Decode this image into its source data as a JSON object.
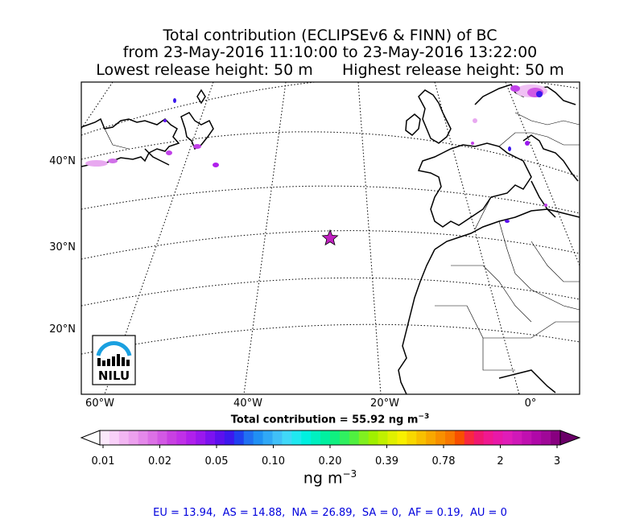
{
  "title": {
    "line1": "Total contribution (ECLIPSEv6 & FINN) of BC",
    "line2": "from 23-May-2016 11:10:00 to 23-May-2016 13:22:00",
    "line3_left": "Lowest release height: 50 m",
    "line3_right": "Highest release height: 50 m"
  },
  "map": {
    "lat_labels": [
      "40°N",
      "30°N",
      "20°N"
    ],
    "lon_labels": [
      "60°W",
      "40°W",
      "20°W",
      "0°"
    ],
    "release_marker": {
      "symbol": "star",
      "color": "#c020c0"
    },
    "logo_text": "NILU"
  },
  "total_label": "Total contribution = 55.92 ng m",
  "total_exp": "−3",
  "colorbar": {
    "ticks": [
      "0.01",
      "0.02",
      "0.05",
      "0.10",
      "0.20",
      "0.39",
      "0.78",
      "2",
      "3"
    ],
    "unit": "ng m",
    "unit_exp": "−3",
    "colors": [
      "#fbe8fb",
      "#f8d0f8",
      "#f2b6f2",
      "#eca0ee",
      "#e488ea",
      "#dc70e6",
      "#d258e4",
      "#c840e2",
      "#c030e8",
      "#b020ec",
      "#9a18ee",
      "#7c12f0",
      "#5c10ee",
      "#3c18ee",
      "#2040f0",
      "#2070f2",
      "#2090f4",
      "#30a8f6",
      "#40c0f8",
      "#40d8f8",
      "#20e8f0",
      "#00f0e0",
      "#00f0c0",
      "#00f0a0",
      "#10f080",
      "#30f060",
      "#50f040",
      "#80f020",
      "#a0f000",
      "#c0f000",
      "#e0f000",
      "#f8f000",
      "#f8d800",
      "#f8c000",
      "#f8a800",
      "#f89000",
      "#f87800",
      "#f85000",
      "#f82840",
      "#f01870",
      "#f01890",
      "#e818a8",
      "#e01cb8",
      "#d018b8",
      "#c010b0",
      "#b008a8",
      "#a00898",
      "#880080"
    ]
  },
  "regions": {
    "text": "EU = 13.94,  AS = 14.88,  NA = 26.89,  SA = 0,  AF = 0.19,  AU = 0"
  }
}
